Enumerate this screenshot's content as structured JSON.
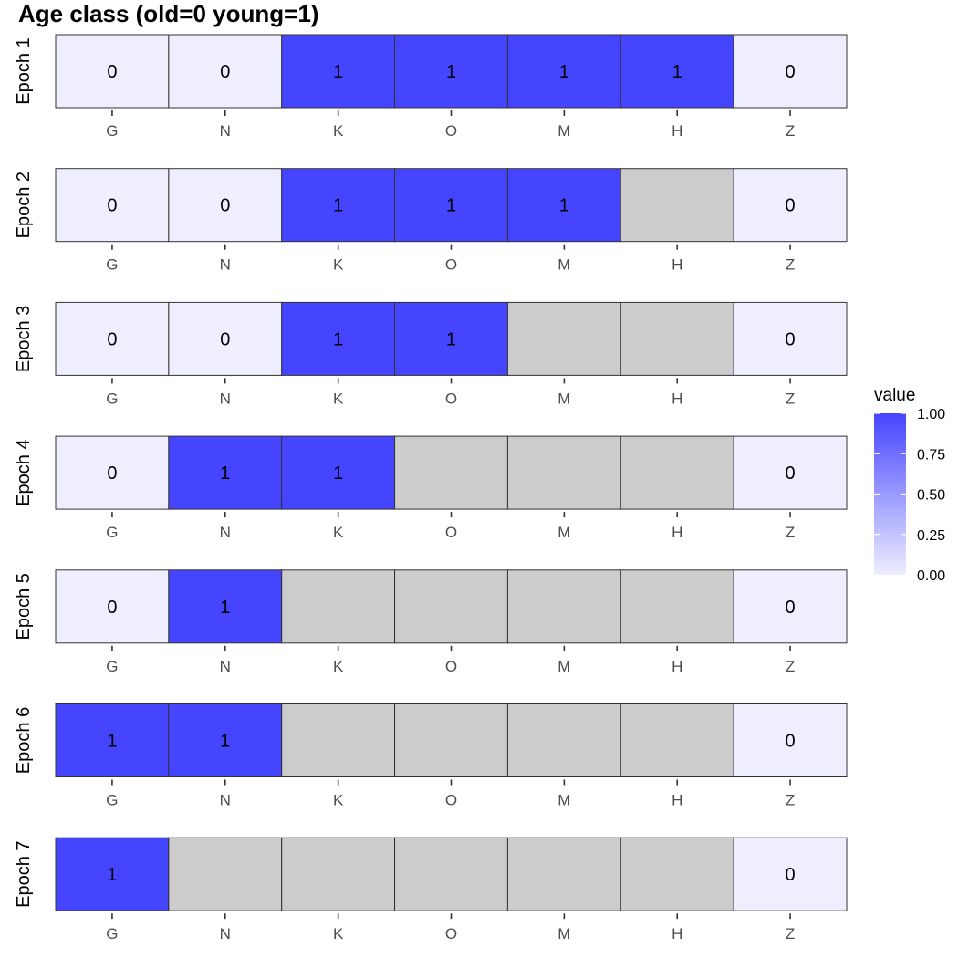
{
  "chart_data": {
    "type": "heatmap",
    "title": "Age class (old=0 young=1)",
    "categories": [
      "G",
      "N",
      "K",
      "O",
      "M",
      "H",
      "Z"
    ],
    "rows": [
      {
        "label": "Epoch 1",
        "values": [
          0,
          0,
          1,
          1,
          1,
          1,
          0
        ]
      },
      {
        "label": "Epoch 2",
        "values": [
          0,
          0,
          1,
          1,
          1,
          null,
          0
        ]
      },
      {
        "label": "Epoch 3",
        "values": [
          0,
          0,
          1,
          1,
          null,
          null,
          0
        ]
      },
      {
        "label": "Epoch 4",
        "values": [
          0,
          1,
          1,
          null,
          null,
          null,
          0
        ]
      },
      {
        "label": "Epoch 5",
        "values": [
          0,
          1,
          null,
          null,
          null,
          null,
          0
        ]
      },
      {
        "label": "Epoch 6",
        "values": [
          1,
          1,
          null,
          null,
          null,
          null,
          0
        ]
      },
      {
        "label": "Epoch 7",
        "values": [
          1,
          null,
          null,
          null,
          null,
          null,
          0
        ]
      }
    ],
    "legend": {
      "title": "value",
      "placement": "right",
      "range": [
        0,
        1
      ],
      "ticks": [
        "1.00",
        "0.75",
        "0.50",
        "0.25",
        "0.00"
      ],
      "low_color": "#eeeeff",
      "high_color": "#4545ff",
      "na_color": "#cccccc"
    }
  }
}
